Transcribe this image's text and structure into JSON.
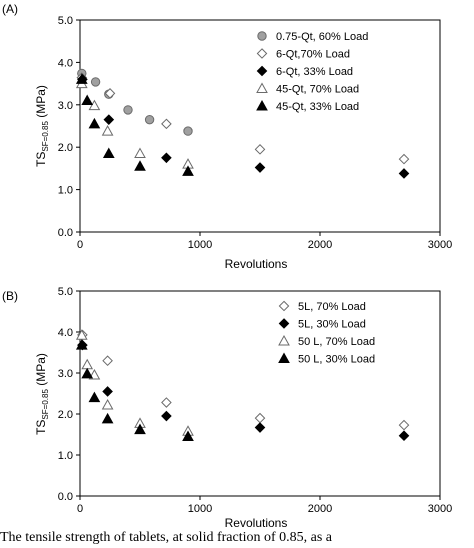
{
  "chart_data": [
    {
      "type": "scatter",
      "panel_label": "(A)",
      "xlabel": "Revolutions",
      "ylabel_main": "TS",
      "ylabel_sub": "SF=0.85",
      "ylabel_unit": " (MPa)",
      "xlim": [
        0,
        3000
      ],
      "ylim": [
        0,
        5
      ],
      "xticks": [
        "0",
        "1000",
        "2000",
        "3000"
      ],
      "yticks": [
        "0.0",
        "1.0",
        "2.0",
        "3.0",
        "4.0",
        "5.0"
      ],
      "legend_position": "top-right",
      "grid": false,
      "series": [
        {
          "name": "0.75-Qt, 60% Load",
          "marker": "circle",
          "fill": "#a0a0a0",
          "points": [
            [
              15,
              3.74
            ],
            [
              130,
              3.54
            ],
            [
              240,
              3.25
            ],
            [
              400,
              2.88
            ],
            [
              580,
              2.65
            ],
            [
              900,
              2.38
            ]
          ]
        },
        {
          "name": "6-Qt,70% Load",
          "marker": "diamond",
          "fill": "#ffffff",
          "points": [
            [
              15,
              3.64
            ],
            [
              250,
              3.27
            ],
            [
              720,
              2.55
            ],
            [
              1500,
              1.95
            ],
            [
              2700,
              1.72
            ]
          ]
        },
        {
          "name": "6-Qt, 33% Load",
          "marker": "diamond",
          "fill": "#000000",
          "points": [
            [
              20,
              3.6
            ],
            [
              240,
              2.65
            ],
            [
              720,
              1.75
            ],
            [
              1500,
              1.52
            ],
            [
              2700,
              1.38
            ]
          ]
        },
        {
          "name": "45-Qt, 70% Load",
          "marker": "triangle",
          "fill": "#ffffff",
          "points": [
            [
              15,
              3.5
            ],
            [
              120,
              2.98
            ],
            [
              230,
              2.38
            ],
            [
              500,
              1.85
            ],
            [
              900,
              1.6
            ]
          ]
        },
        {
          "name": "45-Qt, 33% Load",
          "marker": "triangle",
          "fill": "#000000",
          "points": [
            [
              15,
              3.6
            ],
            [
              60,
              3.1
            ],
            [
              120,
              2.55
            ],
            [
              240,
              1.85
            ],
            [
              500,
              1.55
            ],
            [
              900,
              1.43
            ]
          ]
        }
      ]
    },
    {
      "type": "scatter",
      "panel_label": "(B)",
      "xlabel": "Revolutions",
      "ylabel_main": "TS",
      "ylabel_sub": "SF=0.85",
      "ylabel_unit": " (MPa)",
      "xlim": [
        0,
        3000
      ],
      "ylim": [
        0,
        5
      ],
      "xticks": [
        "0",
        "1000",
        "2000",
        "3000"
      ],
      "yticks": [
        "0.0",
        "1.0",
        "2.0",
        "3.0",
        "4.0",
        "5.0"
      ],
      "legend_position": "top-right",
      "grid": false,
      "series": [
        {
          "name": "5L, 70% Load",
          "marker": "diamond",
          "fill": "#ffffff",
          "points": [
            [
              20,
              3.93
            ],
            [
              230,
              3.3
            ],
            [
              720,
              2.28
            ],
            [
              1500,
              1.9
            ],
            [
              2700,
              1.73
            ]
          ]
        },
        {
          "name": "5L, 30% Load",
          "marker": "diamond",
          "fill": "#000000",
          "points": [
            [
              20,
              3.68
            ],
            [
              230,
              2.55
            ],
            [
              720,
              1.95
            ],
            [
              1500,
              1.67
            ],
            [
              2700,
              1.47
            ]
          ]
        },
        {
          "name": "50 L, 70% Load",
          "marker": "triangle",
          "fill": "#ffffff",
          "points": [
            [
              15,
              3.92
            ],
            [
              60,
              3.2
            ],
            [
              120,
              2.95
            ],
            [
              230,
              2.22
            ],
            [
              500,
              1.77
            ],
            [
              900,
              1.58
            ]
          ]
        },
        {
          "name": "50 L, 30% Load",
          "marker": "triangle",
          "fill": "#000000",
          "points": [
            [
              15,
              3.68
            ],
            [
              60,
              2.98
            ],
            [
              120,
              2.4
            ],
            [
              230,
              1.88
            ],
            [
              500,
              1.62
            ],
            [
              900,
              1.45
            ]
          ]
        }
      ]
    }
  ],
  "caption": "The tensile strength of tablets, at solid fraction of 0.85, as a"
}
